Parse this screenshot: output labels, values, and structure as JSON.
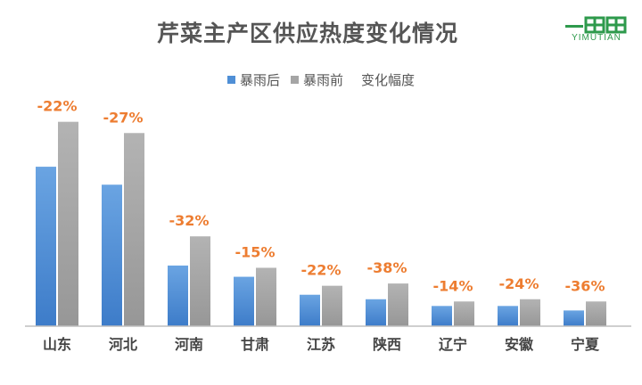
{
  "colors": {
    "after": "#4f8fd6",
    "before": "#a5a5a5",
    "change": "#ed7d31",
    "brand": "#2e9a4c"
  },
  "logo": {
    "text": "YIMUTIAN",
    "icon": "yimutian-logo-icon"
  },
  "chart_data": {
    "type": "bar",
    "title": "芹菜主产区供应热度变化情况",
    "categories": [
      "山东",
      "河北",
      "河南",
      "甘肃",
      "江苏",
      "陕西",
      "辽宁",
      "安徽",
      "宁夏"
    ],
    "series": [
      {
        "name": "暴雨后",
        "values": [
          71,
          63,
          27,
          22,
          14,
          12,
          9,
          9,
          7
        ]
      },
      {
        "name": "暴雨前",
        "values": [
          91,
          86,
          40,
          26,
          18,
          19,
          11,
          12,
          11
        ]
      }
    ],
    "change": {
      "name": "变化幅度",
      "labels": [
        "-22%",
        "-27%",
        "-32%",
        "-15%",
        "-22%",
        "-38%",
        "-14%",
        "-24%",
        "-36%"
      ]
    },
    "ylim": [
      0,
      100
    ],
    "grid": false,
    "legend": "top"
  }
}
